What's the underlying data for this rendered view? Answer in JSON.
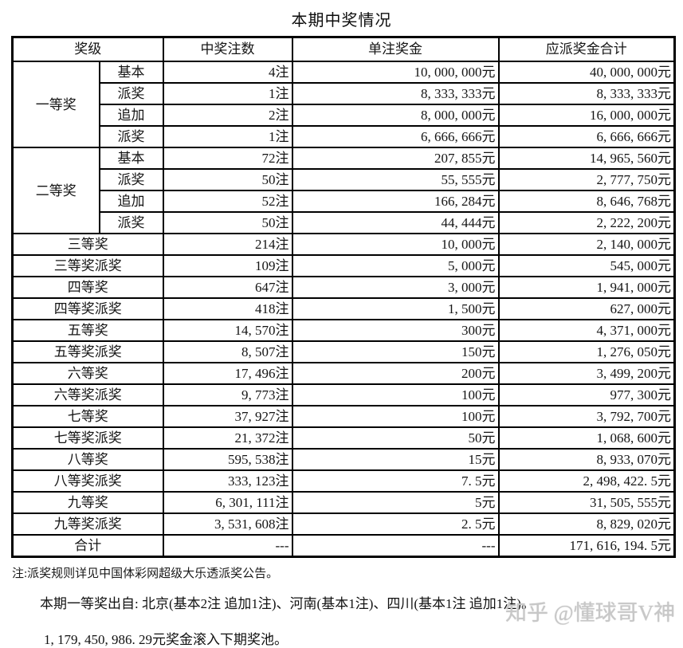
{
  "title": "本期中奖情况",
  "table": {
    "headers": [
      "奖级",
      "中奖注数",
      "单注奖金",
      "应派奖金合计"
    ],
    "groups": [
      {
        "level": "一等奖",
        "subrows": [
          {
            "type": "基本",
            "count": "4注",
            "single": "10, 000, 000元",
            "total": "40, 000, 000元"
          },
          {
            "type": "派奖",
            "count": "1注",
            "single": "8, 333, 333元",
            "total": "8, 333, 333元"
          },
          {
            "type": "追加",
            "count": "2注",
            "single": "8, 000, 000元",
            "total": "16, 000, 000元"
          },
          {
            "type": "派奖",
            "count": "1注",
            "single": "6, 666, 666元",
            "total": "6, 666, 666元"
          }
        ]
      },
      {
        "level": "二等奖",
        "subrows": [
          {
            "type": "基本",
            "count": "72注",
            "single": "207, 855元",
            "total": "14, 965, 560元"
          },
          {
            "type": "派奖",
            "count": "50注",
            "single": "55, 555元",
            "total": "2, 777, 750元"
          },
          {
            "type": "追加",
            "count": "52注",
            "single": "166, 284元",
            "total": "8, 646, 768元"
          },
          {
            "type": "派奖",
            "count": "50注",
            "single": "44, 444元",
            "total": "2, 222, 200元"
          }
        ]
      }
    ],
    "rows": [
      {
        "level": "三等奖",
        "count": "214注",
        "single": "10, 000元",
        "total": "2, 140, 000元"
      },
      {
        "level": "三等奖派奖",
        "count": "109注",
        "single": "5, 000元",
        "total": "545, 000元"
      },
      {
        "level": "四等奖",
        "count": "647注",
        "single": "3, 000元",
        "total": "1, 941, 000元"
      },
      {
        "level": "四等奖派奖",
        "count": "418注",
        "single": "1, 500元",
        "total": "627, 000元"
      },
      {
        "level": "五等奖",
        "count": "14, 570注",
        "single": "300元",
        "total": "4, 371, 000元"
      },
      {
        "level": "五等奖派奖",
        "count": "8, 507注",
        "single": "150元",
        "total": "1, 276, 050元"
      },
      {
        "level": "六等奖",
        "count": "17, 496注",
        "single": "200元",
        "total": "3, 499, 200元"
      },
      {
        "level": "六等奖派奖",
        "count": "9, 773注",
        "single": "100元",
        "total": "977, 300元"
      },
      {
        "level": "七等奖",
        "count": "37, 927注",
        "single": "100元",
        "total": "3, 792, 700元"
      },
      {
        "level": "七等奖派奖",
        "count": "21, 372注",
        "single": "50元",
        "total": "1, 068, 600元"
      },
      {
        "level": "八等奖",
        "count": "595, 538注",
        "single": "15元",
        "total": "8, 933, 070元"
      },
      {
        "level": "八等奖派奖",
        "count": "333, 123注",
        "single": "7. 5元",
        "total": "2, 498, 422. 5元"
      },
      {
        "level": "九等奖",
        "count": "6, 301, 111注",
        "single": "5元",
        "total": "31, 505, 555元"
      },
      {
        "level": "九等奖派奖",
        "count": "3, 531, 608注",
        "single": "2. 5元",
        "total": "8, 829, 020元"
      },
      {
        "level": "合计",
        "count": "---",
        "single": "---",
        "total": "171, 616, 194. 5元"
      }
    ]
  },
  "notes": {
    "rule_note": "注:派奖规则详见中国体彩网超级大乐透派奖公告。",
    "source_note": "本期一等奖出自: 北京(基本2注 追加1注)、河南(基本1注)、四川(基本1注 追加1注)。",
    "rollover_note": "1, 179, 450, 986. 29元奖金滚入下期奖池。"
  },
  "watermark": "知乎 @懂球哥V神",
  "colors": {
    "border": "#000000",
    "text": "#111111",
    "watermark": "#c7c7c7",
    "background": "#ffffff"
  }
}
